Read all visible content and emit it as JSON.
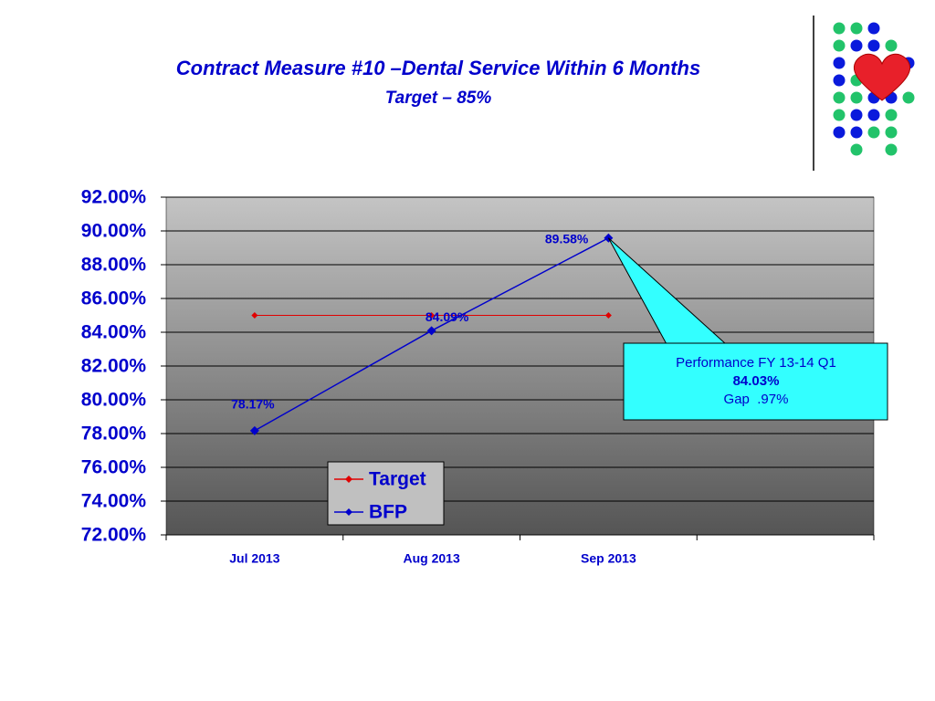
{
  "chart_data": {
    "type": "line",
    "title": "Contract Measure #10 –Dental Service Within 6 Months",
    "subtitle": "Target – 85%",
    "categories": [
      "Jul 2013",
      "Aug 2013",
      "Sep 2013",
      null
    ],
    "series": [
      {
        "name": "Target",
        "color": "#e00000",
        "values": [
          85,
          85,
          85,
          null
        ]
      },
      {
        "name": "BFP",
        "color": "#0000cc",
        "values": [
          78.17,
          84.09,
          89.58,
          null
        ],
        "value_labels": [
          "78.17%",
          "84.09%",
          "89.58%",
          null
        ]
      }
    ],
    "ylim": [
      72,
      92
    ],
    "yticks": [
      {
        "value": 72,
        "label": "72.00%"
      },
      {
        "value": 74,
        "label": "74.00%"
      },
      {
        "value": 76,
        "label": "76.00%"
      },
      {
        "value": 78,
        "label": "78.00%"
      },
      {
        "value": 80,
        "label": "80.00%"
      },
      {
        "value": 82,
        "label": "82.00%"
      },
      {
        "value": 84,
        "label": "84.00%"
      },
      {
        "value": 86,
        "label": "86.00%"
      },
      {
        "value": 88,
        "label": "88.00%"
      },
      {
        "value": 90,
        "label": "90.00%"
      },
      {
        "value": 92,
        "label": "92.00%"
      }
    ],
    "grid": true,
    "callout": [
      "Performance FY 13-14 Q1",
      "84.03%",
      "Gap  .97%"
    ]
  }
}
